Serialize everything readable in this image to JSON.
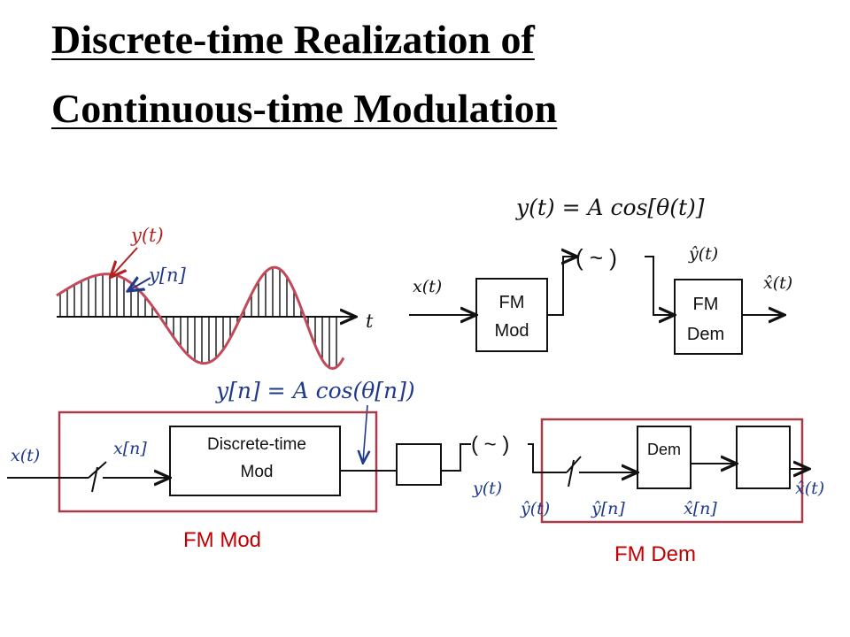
{
  "title": {
    "line1": "Discrete-time Realization of",
    "line2": "Continuous-time Modulation"
  },
  "waveform": {
    "y_t_label": "y(t)",
    "y_n_label": "y[n]",
    "t_label": "t"
  },
  "top_system": {
    "equation": "y(t) = A cos[θ(t)]",
    "input_label": "x(t)",
    "mod_block_line1": "FM",
    "mod_block_line2": "Mod",
    "yhat_label": "ŷ(t)",
    "dem_block_line1": "FM",
    "dem_block_line2": "Dem",
    "output_label": "x̂(t)",
    "channel_symbol": "( ~ )"
  },
  "bottom_system": {
    "equation": "y[n] = A cos(θ[n])",
    "input_label": "x(t)",
    "xn_label": "x[n]",
    "dt_mod_line1": "Discrete-time",
    "dt_mod_line2": "Mod",
    "yt_label": "y(t)",
    "channel_symbol": "( ~ )",
    "yhat_t_label": "ŷ(t)",
    "yhat_n_label": "ŷ[n]",
    "dem_block": "Dem",
    "xhat_n_label": "x̂[n]",
    "output_label": "x̂(t)",
    "fm_mod_caption": "FM Mod",
    "fm_dem_caption": "FM Dem"
  },
  "colors": {
    "red": "#b22222",
    "navy": "#1f3a8a",
    "ink": "#111111",
    "frame": "#a83a4a",
    "caption": "#c00000"
  }
}
